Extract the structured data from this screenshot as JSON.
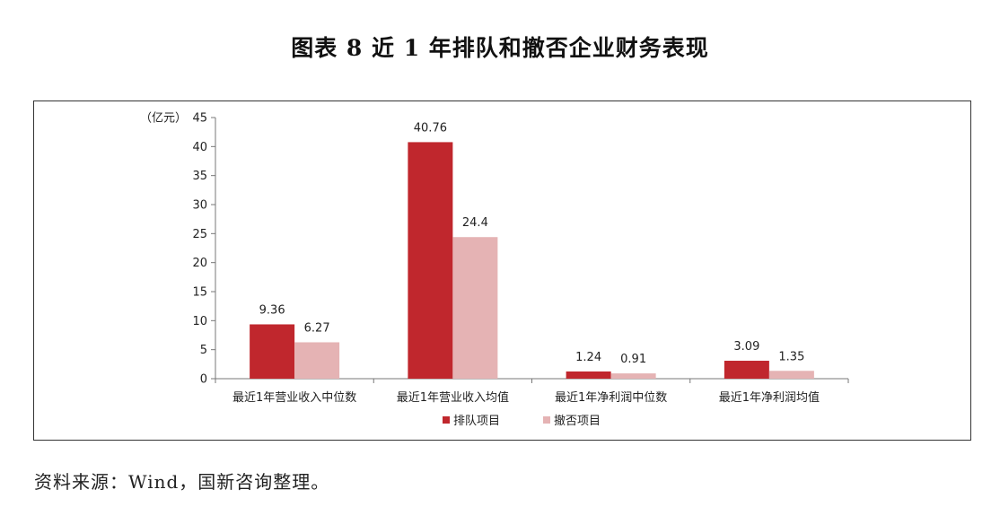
{
  "title": "图表 8  近 1 年排队和撤否企业财务表现",
  "source": "资料来源：Wind，国新咨询整理。",
  "colors": {
    "series1": "#c0272d",
    "series2": "#e5b3b4"
  },
  "chart_data": {
    "type": "bar",
    "unit_label": "（亿元）",
    "categories": [
      "最近1年营业收入中位数",
      "最近1年营业收入均值",
      "最近1年净利润中位数",
      "最近1年净利润均值"
    ],
    "series": [
      {
        "name": "排队项目",
        "values": [
          9.36,
          40.76,
          1.24,
          3.09
        ],
        "labels": [
          "9.36",
          "40.76",
          "1.24",
          "3.09"
        ]
      },
      {
        "name": "撤否项目",
        "values": [
          6.27,
          24.4,
          0.91,
          1.35
        ],
        "labels": [
          "6.27",
          "24.4",
          "0.91",
          "1.35"
        ]
      }
    ],
    "ylim": [
      0,
      45
    ],
    "yticks": [
      0,
      5,
      10,
      15,
      20,
      25,
      30,
      35,
      40,
      45
    ],
    "grid": false,
    "legend": "bottom-center"
  }
}
